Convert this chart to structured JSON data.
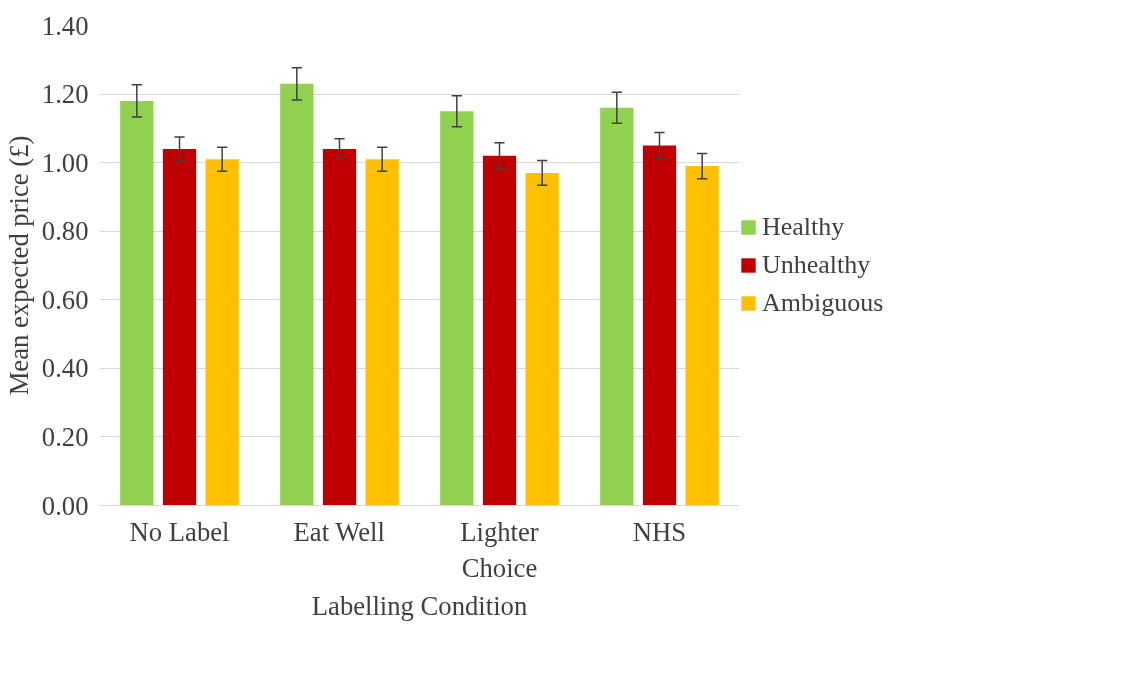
{
  "chart_data": {
    "type": "bar",
    "xlabel": "Labelling Condition",
    "ylabel": "Mean expected price (£)",
    "categories": [
      "No Label",
      "Eat Well",
      "Lighter Choice",
      "NHS"
    ],
    "series": [
      {
        "name": "Healthy",
        "color": "#92d050",
        "values": [
          1.18,
          1.23,
          1.15,
          1.16
        ],
        "errors": [
          0.047,
          0.047,
          0.045,
          0.045
        ]
      },
      {
        "name": "Unhealthy",
        "color": "#c00000",
        "values": [
          1.04,
          1.04,
          1.02,
          1.05
        ],
        "errors": [
          0.035,
          0.03,
          0.038,
          0.038
        ]
      },
      {
        "name": "Ambiguous",
        "color": "#ffc000",
        "values": [
          1.01,
          1.01,
          0.97,
          0.99
        ],
        "errors": [
          0.035,
          0.035,
          0.036,
          0.037
        ]
      }
    ],
    "ylim": [
      0,
      1.4
    ],
    "yticks": [
      {
        "value": 0,
        "label": "0.00"
      },
      {
        "value": 0.2,
        "label": "0.20"
      },
      {
        "value": 0.4,
        "label": "0.40"
      },
      {
        "value": 0.6,
        "label": "0.60"
      },
      {
        "value": 0.8,
        "label": "0.80"
      },
      {
        "value": 1.0,
        "label": "1.00"
      },
      {
        "value": 1.2,
        "label": "1.20"
      },
      {
        "value": 1.4,
        "label": "1.40"
      }
    ],
    "grid": "y",
    "legend": "right"
  }
}
